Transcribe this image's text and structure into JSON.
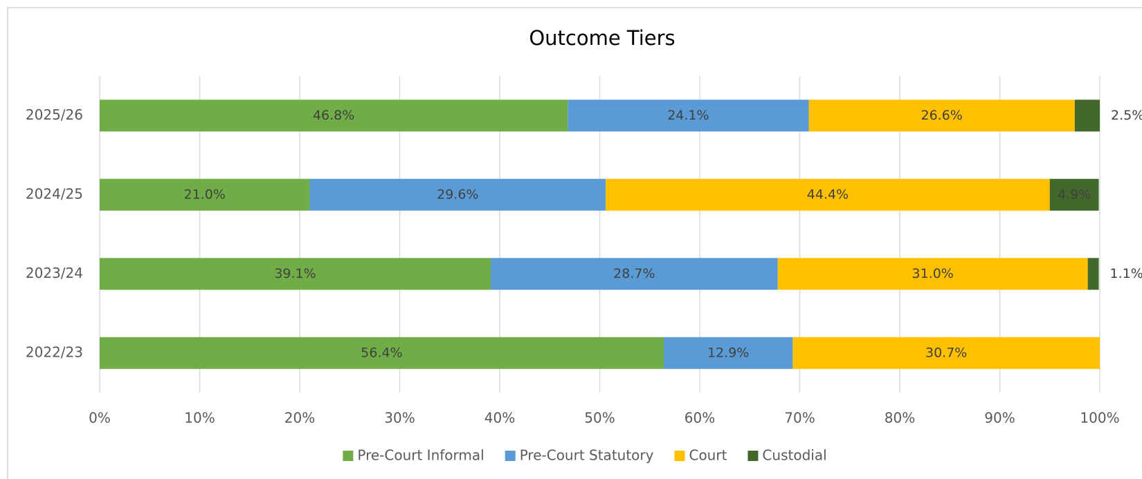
{
  "chart_data": {
    "type": "stacked_bar_horizontal",
    "title": "Outcome Tiers",
    "categories": [
      "2025/26",
      "2024/25",
      "2023/24",
      "2022/23"
    ],
    "series": [
      {
        "name": "Pre-Court Informal",
        "color": "#70ad47",
        "values": [
          46.8,
          21.0,
          39.1,
          56.4
        ],
        "value_labels": [
          "46.8%",
          "21.0%",
          "39.1%",
          "56.4%"
        ]
      },
      {
        "name": "Pre-Court Statutory",
        "color": "#5b9bd5",
        "values": [
          24.1,
          29.6,
          28.7,
          12.9
        ],
        "value_labels": [
          "24.1%",
          "29.6%",
          "28.7%",
          "12.9%"
        ]
      },
      {
        "name": "Court",
        "color": "#ffc000",
        "values": [
          26.6,
          44.4,
          31.0,
          30.7
        ],
        "value_labels": [
          "26.6%",
          "44.4%",
          "31.0%",
          "30.7%"
        ]
      },
      {
        "name": "Custodial",
        "color": "#43682b",
        "values": [
          2.5,
          4.9,
          1.1,
          null
        ],
        "value_labels": [
          "2.5%",
          "4.9%",
          "1.1%",
          null
        ]
      }
    ],
    "xlim": [
      0,
      100
    ],
    "xticks": [
      {
        "value": 0,
        "label": "0%"
      },
      {
        "value": 10,
        "label": "10%"
      },
      {
        "value": 20,
        "label": "20%"
      },
      {
        "value": 30,
        "label": "30%"
      },
      {
        "value": 40,
        "label": "40%"
      },
      {
        "value": 50,
        "label": "50%"
      },
      {
        "value": 60,
        "label": "60%"
      },
      {
        "value": 70,
        "label": "70%"
      },
      {
        "value": 80,
        "label": "80%"
      },
      {
        "value": 90,
        "label": "90%"
      },
      {
        "value": 100,
        "label": "100%"
      }
    ],
    "grid": true,
    "legend": "bottom"
  }
}
